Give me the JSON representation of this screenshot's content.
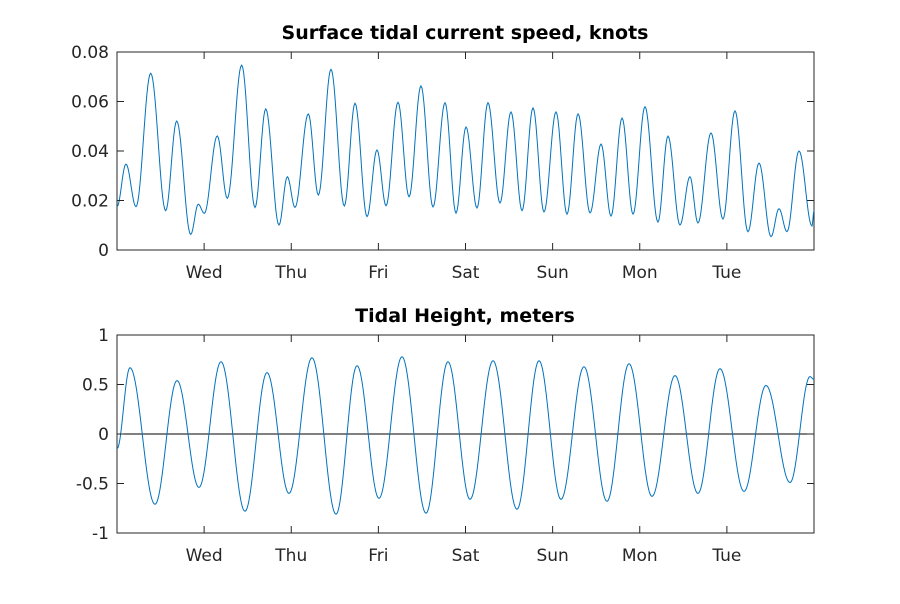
{
  "chart_data": [
    {
      "type": "line",
      "title": "Surface tidal current speed, knots",
      "xlabel": "",
      "ylabel": "",
      "xlim": [
        0,
        8
      ],
      "ylim": [
        0,
        0.08
      ],
      "x_unit": "days from start of plot (Wed = 1)",
      "xticks": [
        1,
        2,
        3,
        4,
        5,
        6,
        7
      ],
      "xtick_labels": [
        "Wed",
        "Thu",
        "Fri",
        "Sat",
        "Sun",
        "Mon",
        "Tue"
      ],
      "yticks": [
        0,
        0.02,
        0.04,
        0.06,
        0.08
      ],
      "ytick_labels": [
        "0",
        "0.02",
        "0.04",
        "0.06",
        "0.08"
      ],
      "grid": false,
      "color": "#0072BD",
      "series": [
        {
          "name": "current speed",
          "note": "local extrema, smooth curve between",
          "x": [
            0,
            0.103,
            0.218,
            0.387,
            0.559,
            0.685,
            0.846,
            0.933,
            1.002,
            1.151,
            1.266,
            1.431,
            1.584,
            1.707,
            1.859,
            1.955,
            2.043,
            2.196,
            2.311,
            2.456,
            2.609,
            2.732,
            2.87,
            2.984,
            3.088,
            3.225,
            3.352,
            3.489,
            3.627,
            3.765,
            3.891,
            4.006,
            4.132,
            4.258,
            4.396,
            4.522,
            4.649,
            4.775,
            4.901,
            5.039,
            5.165,
            5.292,
            5.43,
            5.556,
            5.67,
            5.797,
            5.923,
            6.06,
            6.209,
            6.324,
            6.462,
            6.576,
            6.668,
            6.818,
            6.955,
            7.093,
            7.242,
            7.369,
            7.507,
            7.598,
            7.69,
            7.828,
            7.977,
            8.0
          ],
          "y": [
            0.0175,
            0.0347,
            0.0175,
            0.0714,
            0.0159,
            0.0521,
            0.0063,
            0.0185,
            0.0148,
            0.0461,
            0.0209,
            0.0747,
            0.0172,
            0.057,
            0.0101,
            0.0296,
            0.0172,
            0.055,
            0.0222,
            0.073,
            0.0178,
            0.0593,
            0.0135,
            0.0404,
            0.0179,
            0.0597,
            0.0215,
            0.0663,
            0.0174,
            0.0595,
            0.0149,
            0.0497,
            0.017,
            0.0595,
            0.019,
            0.0558,
            0.0159,
            0.0574,
            0.0154,
            0.0558,
            0.0145,
            0.055,
            0.015,
            0.0428,
            0.0137,
            0.0533,
            0.0145,
            0.0579,
            0.0113,
            0.046,
            0.0101,
            0.0296,
            0.0109,
            0.0473,
            0.0125,
            0.0562,
            0.0074,
            0.0351,
            0.0054,
            0.0167,
            0.0074,
            0.04,
            0.0097,
            0.016
          ]
        }
      ]
    },
    {
      "type": "line",
      "title": "Tidal Height, meters",
      "xlabel": "",
      "ylabel": "",
      "xlim": [
        0,
        8
      ],
      "ylim": [
        -1,
        1
      ],
      "x_unit": "days from start of plot (Wed = 1)",
      "xticks": [
        1,
        2,
        3,
        4,
        5,
        6,
        7
      ],
      "xtick_labels": [
        "Wed",
        "Thu",
        "Fri",
        "Sat",
        "Sun",
        "Mon",
        "Tue"
      ],
      "yticks": [
        -1,
        -0.5,
        0,
        0.5,
        1
      ],
      "ytick_labels": [
        "-1",
        "-0.5",
        "0",
        "0.5",
        "1"
      ],
      "grid": false,
      "zero_line": true,
      "color": "#0072BD",
      "series": [
        {
          "name": "tidal height",
          "note": "local extrema, smooth curve between",
          "x": [
            0,
            0.149,
            0.436,
            0.689,
            0.941,
            1.194,
            1.469,
            1.722,
            1.974,
            2.238,
            2.514,
            2.755,
            3.007,
            3.271,
            3.547,
            3.799,
            4.052,
            4.316,
            4.591,
            4.844,
            5.096,
            5.36,
            5.624,
            5.877,
            6.141,
            6.405,
            6.668,
            6.921,
            7.197,
            7.449,
            7.725,
            7.954,
            8.0
          ],
          "y": [
            -0.15,
            0.67,
            -0.71,
            0.54,
            -0.54,
            0.73,
            -0.78,
            0.62,
            -0.6,
            0.77,
            -0.81,
            0.69,
            -0.65,
            0.78,
            -0.8,
            0.73,
            -0.66,
            0.74,
            -0.76,
            0.74,
            -0.66,
            0.68,
            -0.68,
            0.71,
            -0.63,
            0.59,
            -0.6,
            0.66,
            -0.58,
            0.49,
            -0.49,
            0.58,
            0.55
          ]
        }
      ]
    }
  ]
}
